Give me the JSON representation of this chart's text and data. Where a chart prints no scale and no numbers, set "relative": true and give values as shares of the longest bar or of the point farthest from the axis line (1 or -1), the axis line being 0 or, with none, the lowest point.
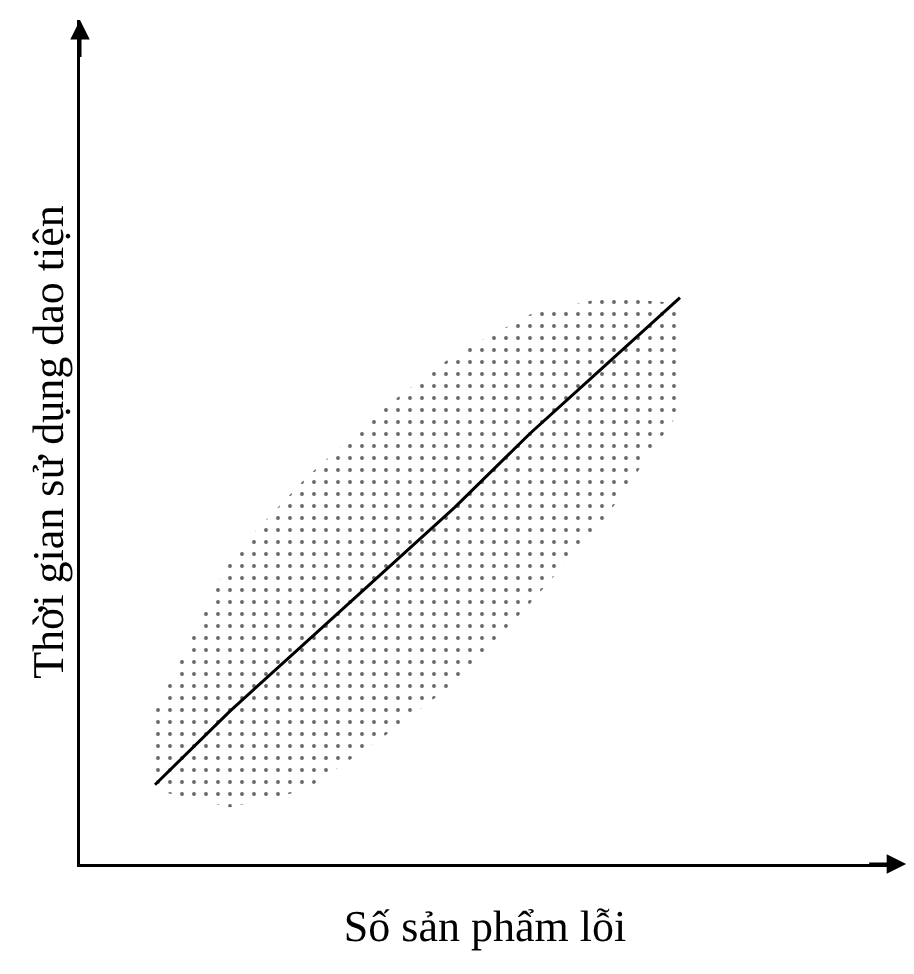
{
  "chart_data": {
    "type": "line",
    "relative": true,
    "xlabel": "Số sản phẩm lỗi",
    "ylabel": "Thời gian sử dụng dao tiện",
    "categories": [
      null,
      null,
      null,
      null,
      null,
      null,
      null,
      null
    ],
    "series": [
      {
        "color": "#000000",
        "values": [
          0.14,
          0.27,
          0.39,
          0.51,
          0.63,
          0.76,
          0.88,
          1
        ],
        "lower": [
          0.13,
          0.1,
          0.13,
          0.22,
          0.32,
          0.46,
          0.61,
          0.8
        ],
        "upper": [
          0.27,
          0.54,
          0.68,
          0.8,
          0.9,
          0.97,
          1,
          0.99
        ]
      }
    ],
    "grid": false,
    "marker": "none",
    "line_style": "solid"
  }
}
